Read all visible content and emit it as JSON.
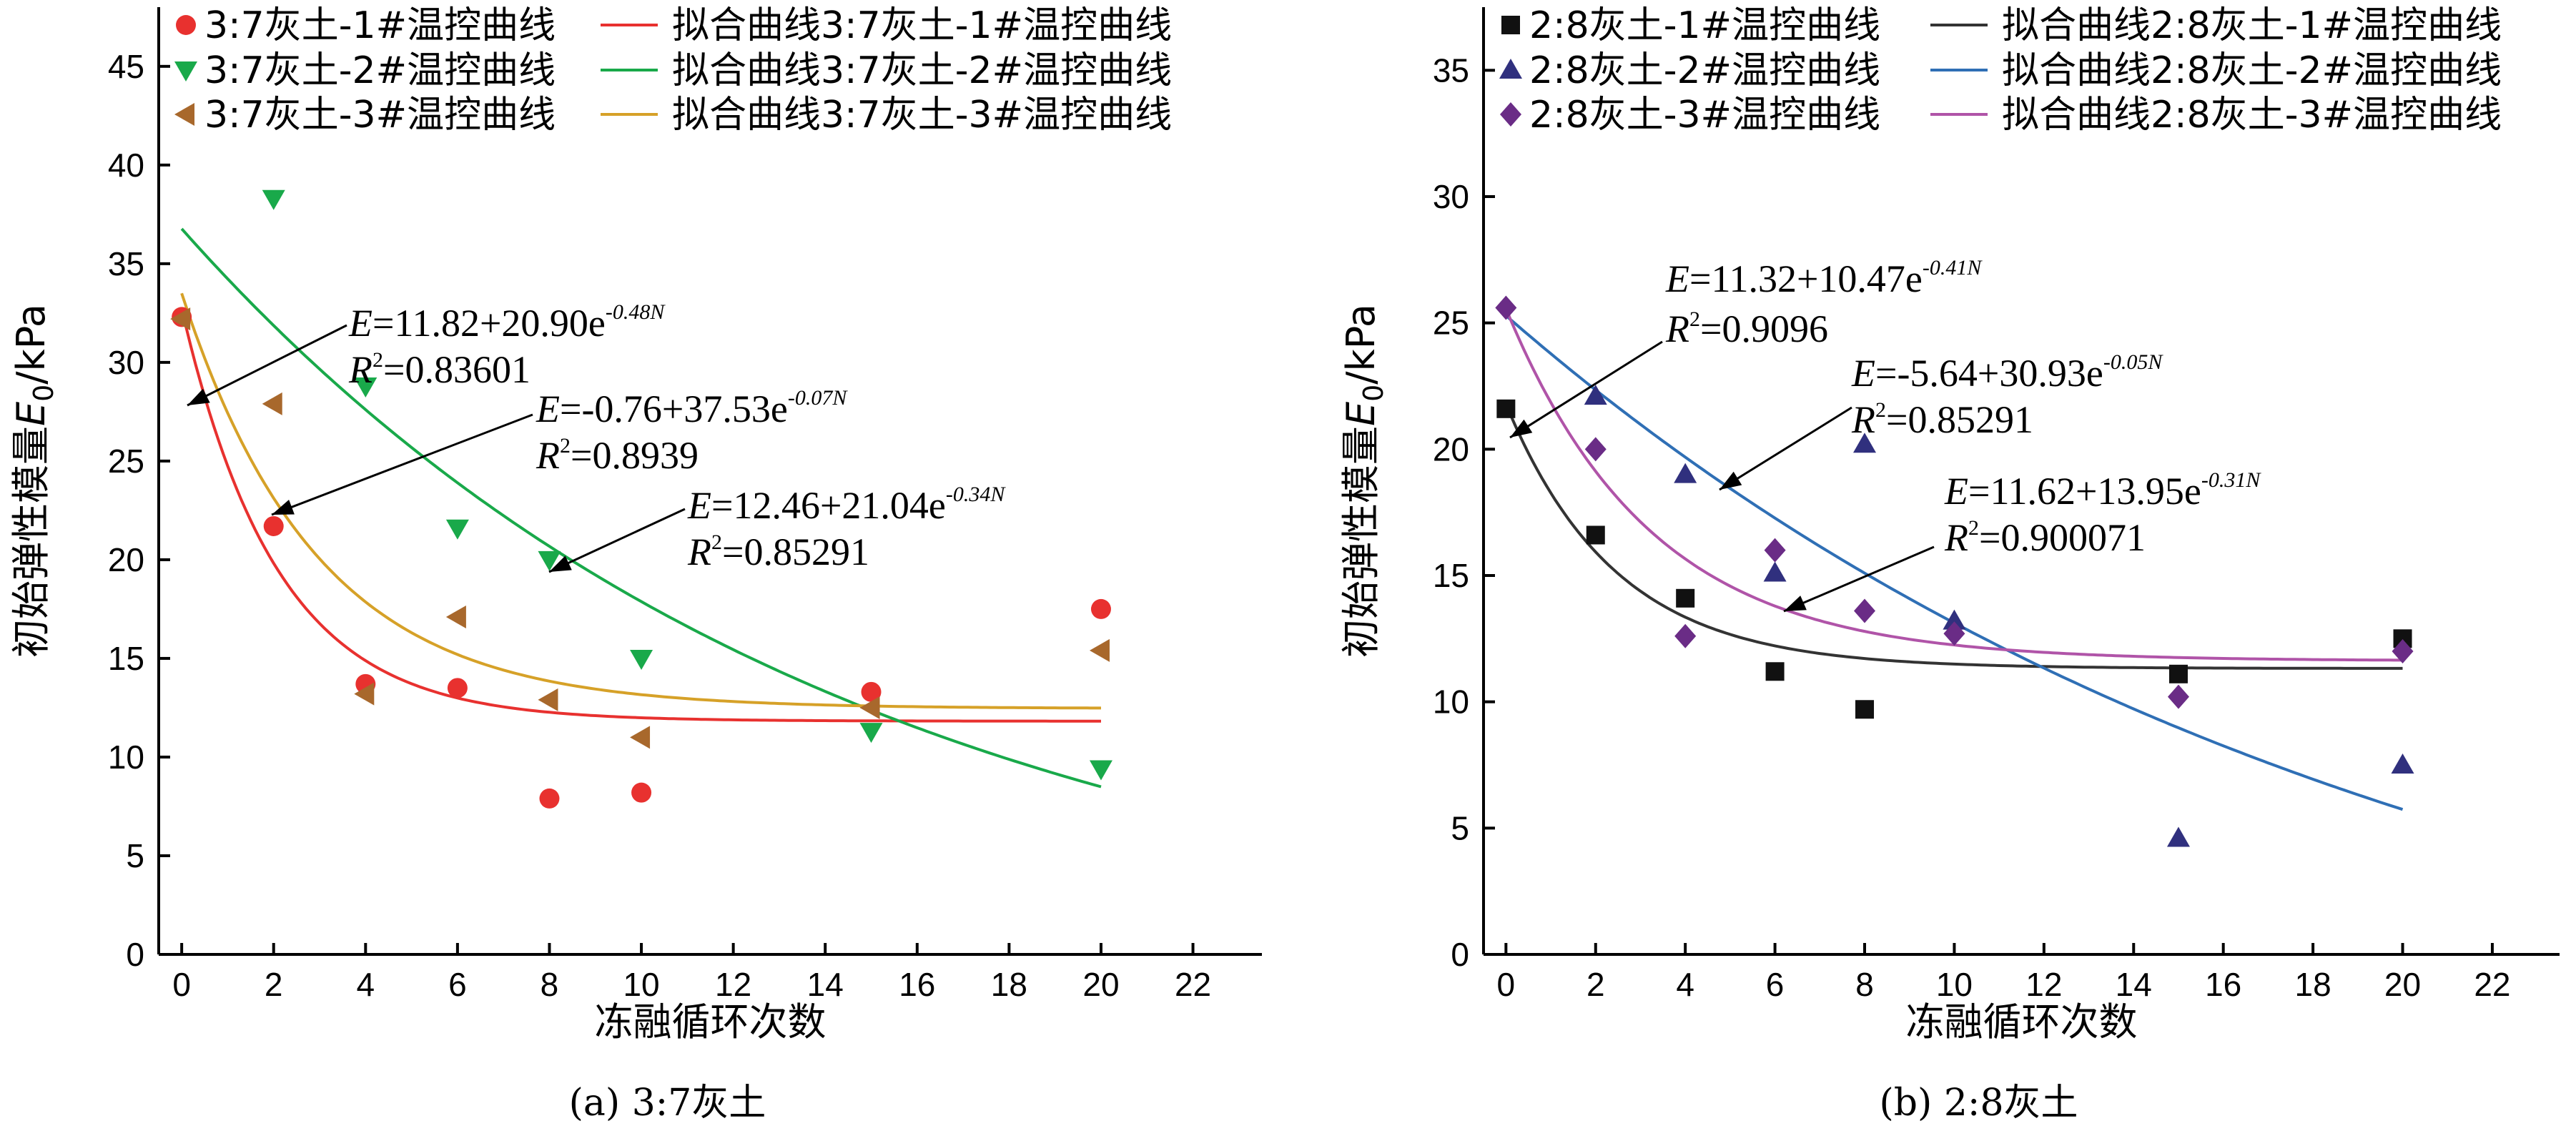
{
  "chart_data": [
    {
      "type": "scatter",
      "caption": "(a) 3:7灰土",
      "xlabel": "冻融循环次数",
      "ylabel_prefix": "初始弹性模量",
      "ylabel_var": "E",
      "ylabel_sub": "0",
      "ylabel_suffix": "/kPa",
      "xlim": [
        -0.5,
        23.5
      ],
      "ylim": [
        0,
        48
      ],
      "xticks": [
        0,
        2,
        4,
        6,
        8,
        10,
        12,
        14,
        16,
        18,
        20,
        22
      ],
      "yticks": [
        0,
        5,
        10,
        15,
        20,
        25,
        30,
        35,
        40,
        45
      ],
      "grid": false,
      "legend_position": "top",
      "series": [
        {
          "name": "3:7灰土-1#温控曲线",
          "marker": "circle",
          "color": "#e8312f",
          "points": [
            [
              0,
              32.3
            ],
            [
              2,
              21.7
            ],
            [
              4,
              13.7
            ],
            [
              6,
              13.5
            ],
            [
              8,
              7.9
            ],
            [
              10,
              8.2
            ],
            [
              15,
              13.3
            ],
            [
              20,
              17.5
            ]
          ]
        },
        {
          "name": "3:7灰土-2#温控曲线",
          "marker": "triangle-down",
          "color": "#19a94a",
          "points": [
            [
              2,
              38.3
            ],
            [
              4,
              28.8
            ],
            [
              6,
              21.6
            ],
            [
              8,
              20.0
            ],
            [
              10,
              15.0
            ],
            [
              15,
              11.3
            ],
            [
              20,
              9.4
            ]
          ]
        },
        {
          "name": "3:7灰土-3#温控曲线",
          "marker": "triangle-left",
          "color": "#a8682c",
          "points": [
            [
              0,
              32.2
            ],
            [
              2,
              27.9
            ],
            [
              4,
              13.2
            ],
            [
              6,
              17.1
            ],
            [
              8,
              12.9
            ],
            [
              10,
              11.0
            ],
            [
              15,
              12.5
            ],
            [
              20,
              15.4
            ]
          ]
        }
      ],
      "fits": [
        {
          "name": "拟合曲线3:7灰土-1#温控曲线",
          "color": "#e8312f",
          "a": 11.82,
          "b": 20.9,
          "k": 0.48
        },
        {
          "name": "拟合曲线3:7灰土-2#温控曲线",
          "color": "#19a94a",
          "a": -0.76,
          "b": 37.53,
          "k": 0.07
        },
        {
          "name": "拟合曲线3:7灰土-3#温控曲线",
          "color": "#d6a128",
          "a": 12.46,
          "b": 21.04,
          "k": 0.34
        }
      ],
      "annotations": [
        {
          "eq_prefix": "=11.82+20.90e",
          "eq_exp": "-0.48N",
          "r2": "=0.83601"
        },
        {
          "eq_prefix": "=-0.76+37.53e",
          "eq_exp": "-0.07N",
          "r2": "=0.8939"
        },
        {
          "eq_prefix": "=12.46+21.04e",
          "eq_exp": "-0.34N",
          "r2": "=0.85291"
        }
      ]
    },
    {
      "type": "scatter",
      "caption": "(b) 2:8灰土",
      "xlabel": "冻融循环次数",
      "ylabel_prefix": "初始弹性模量",
      "ylabel_var": "E",
      "ylabel_sub": "0",
      "ylabel_suffix": "/kPa",
      "xlim": [
        -0.5,
        23.5
      ],
      "ylim": [
        0,
        37.5
      ],
      "xticks": [
        0,
        2,
        4,
        6,
        8,
        10,
        12,
        14,
        16,
        18,
        20,
        22
      ],
      "yticks": [
        0,
        5,
        10,
        15,
        20,
        25,
        30,
        35
      ],
      "grid": false,
      "legend_position": "top",
      "series": [
        {
          "name": "2:8灰土-1#温控曲线",
          "marker": "square",
          "color": "#111111",
          "points": [
            [
              0,
              21.6
            ],
            [
              2,
              16.6
            ],
            [
              4,
              14.1
            ],
            [
              6,
              11.2
            ],
            [
              8,
              9.7
            ],
            [
              15,
              11.1
            ],
            [
              20,
              12.5
            ]
          ]
        },
        {
          "name": "2:8灰土-2#温控曲线",
          "marker": "triangle-up",
          "color": "#30307e",
          "points": [
            [
              2,
              22.1
            ],
            [
              4,
              19.0
            ],
            [
              6,
              15.1
            ],
            [
              8,
              20.2
            ],
            [
              10,
              13.2
            ],
            [
              15,
              4.6
            ],
            [
              20,
              7.5
            ]
          ]
        },
        {
          "name": "2:8灰土-3#温控曲线",
          "marker": "diamond",
          "color": "#6a2c86",
          "points": [
            [
              0,
              25.6
            ],
            [
              2,
              20.0
            ],
            [
              4,
              12.6
            ],
            [
              6,
              16.0
            ],
            [
              8,
              13.6
            ],
            [
              10,
              12.7
            ],
            [
              15,
              10.2
            ],
            [
              20,
              12.0
            ]
          ]
        }
      ],
      "fits": [
        {
          "name": "拟合曲线2:8灰土-1#温控曲线",
          "color": "#333333",
          "a": 11.32,
          "b": 10.47,
          "k": 0.41
        },
        {
          "name": "拟合曲线2:8灰土-2#温控曲线",
          "color": "#2f6fb5",
          "a": -5.64,
          "b": 30.93,
          "k": 0.05
        },
        {
          "name": "拟合曲线2:8灰土-3#温控曲线",
          "color": "#b054a8",
          "a": 11.62,
          "b": 13.95,
          "k": 0.31
        }
      ],
      "annotations": [
        {
          "eq_prefix": "=11.32+10.47e",
          "eq_exp": "-0.41N",
          "r2": "=0.9096"
        },
        {
          "eq_prefix": "=-5.64+30.93e",
          "eq_exp": "-0.05N",
          "r2": "=0.85291"
        },
        {
          "eq_prefix": "=11.62+13.95e",
          "eq_exp": "-0.31N",
          "r2": "=0.900071"
        }
      ]
    }
  ]
}
